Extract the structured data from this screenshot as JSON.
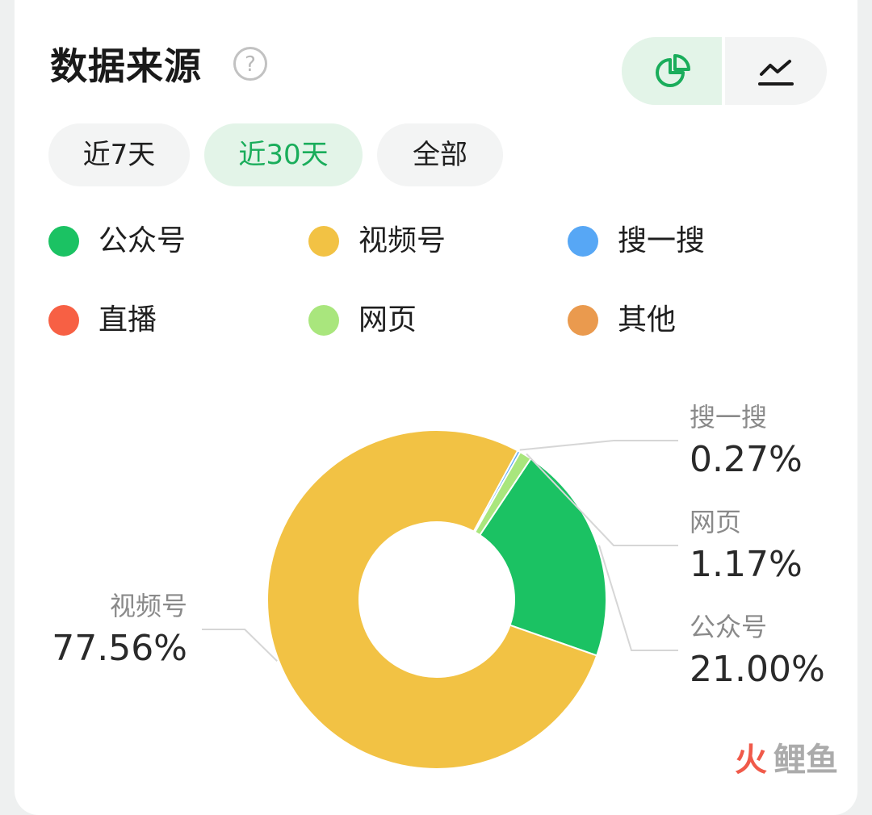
{
  "header": {
    "title": "数据来源",
    "help_glyph": "?",
    "view_toggle": [
      {
        "name": "pie-chart-icon",
        "active": true
      },
      {
        "name": "line-chart-icon",
        "active": false
      }
    ]
  },
  "range_tabs": [
    {
      "label": "近7天",
      "active": false
    },
    {
      "label": "近30天",
      "active": true
    },
    {
      "label": "全部",
      "active": false
    }
  ],
  "legend": [
    {
      "label": "公众号",
      "color": "#1bc263"
    },
    {
      "label": "视频号",
      "color": "#f2c244"
    },
    {
      "label": "搜一搜",
      "color": "#57a7f5"
    },
    {
      "label": "直播",
      "color": "#f76044"
    },
    {
      "label": "网页",
      "color": "#a9e67d"
    },
    {
      "label": "其他",
      "color": "#ea9a4e"
    }
  ],
  "chart_data": {
    "type": "pie",
    "donut": true,
    "slices": [
      {
        "label": "公众号",
        "value": 21.0,
        "display": "21.00%",
        "color": "#1bc263"
      },
      {
        "label": "视频号",
        "value": 77.56,
        "display": "77.56%",
        "color": "#f2c244"
      },
      {
        "label": "搜一搜",
        "value": 0.27,
        "display": "0.27%",
        "color": "#57a7f5"
      },
      {
        "label": "网页",
        "value": 1.17,
        "display": "1.17%",
        "color": "#a9e67d"
      }
    ]
  },
  "colors": {
    "accent": "#1aad5b",
    "accent_bg": "#e3f4e8"
  },
  "watermark": "火鲤鱼"
}
